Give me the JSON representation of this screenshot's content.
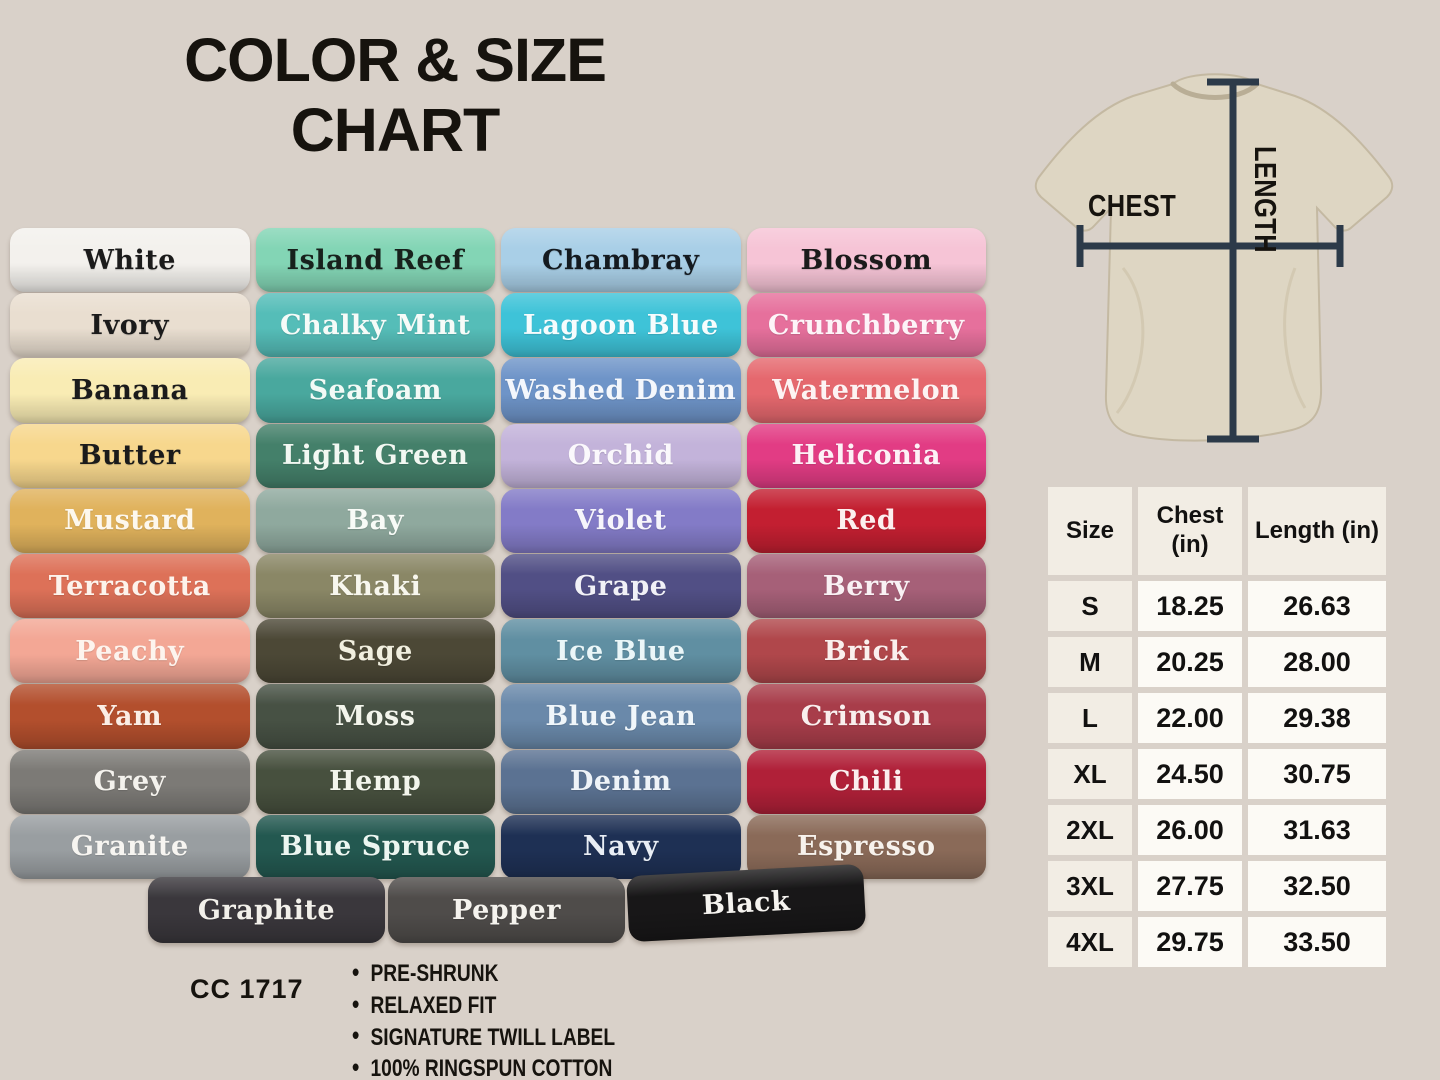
{
  "title": {
    "line1": "COLOR & SIZE",
    "line2": "CHART"
  },
  "background_color": "#d9d1c9",
  "color_grid": {
    "columns": [
      {
        "shirts": [
          {
            "name": "White",
            "color": "#f3f1ed",
            "text": "#1b1b1b"
          },
          {
            "name": "Ivory",
            "color": "#e9ded0",
            "text": "#1b1b1b"
          },
          {
            "name": "Banana",
            "color": "#f9ecb4",
            "text": "#1b1b1b"
          },
          {
            "name": "Butter",
            "color": "#f7d78d",
            "text": "#1b1b1b"
          },
          {
            "name": "Mustard",
            "color": "#e0b25c",
            "text": "#fdf8ee"
          },
          {
            "name": "Terracotta",
            "color": "#dd7158",
            "text": "#fdf3ec"
          },
          {
            "name": "Peachy",
            "color": "#f3a795",
            "text": "#fdf4ee"
          },
          {
            "name": "Yam",
            "color": "#b34f2d",
            "text": "#fbeee6"
          },
          {
            "name": "Grey",
            "color": "#7c7a76",
            "text": "#f4f2ed"
          },
          {
            "name": "Granite",
            "color": "#999ea1",
            "text": "#f7f5f1"
          }
        ]
      },
      {
        "shirts": [
          {
            "name": "Island Reef",
            "color": "#83d5b5",
            "text": "#17211c"
          },
          {
            "name": "Chalky Mint",
            "color": "#55bdb8",
            "text": "#f6fbf8"
          },
          {
            "name": "Seafoam",
            "color": "#49a89e",
            "text": "#f2faf6"
          },
          {
            "name": "Light Green",
            "color": "#44806a",
            "text": "#f2f8f2"
          },
          {
            "name": "Bay",
            "color": "#8fa99e",
            "text": "#f8fbf7"
          },
          {
            "name": "Khaki",
            "color": "#8a8766",
            "text": "#f8f7ee"
          },
          {
            "name": "Sage",
            "color": "#4c4836",
            "text": "#f1efdf"
          },
          {
            "name": "Moss",
            "color": "#475144",
            "text": "#f3f5ec"
          },
          {
            "name": "Hemp",
            "color": "#47503e",
            "text": "#f3f5ec"
          },
          {
            "name": "Blue Spruce",
            "color": "#235850",
            "text": "#ecf6f1"
          }
        ]
      },
      {
        "shirts": [
          {
            "name": "Chambray",
            "color": "#a9cfe7",
            "text": "#141a20"
          },
          {
            "name": "Lagoon Blue",
            "color": "#3ec3d8",
            "text": "#f6fcfd"
          },
          {
            "name": "Washed Denim",
            "color": "#6e94c8",
            "text": "#f4f7fc"
          },
          {
            "name": "Orchid",
            "color": "#c3b3da",
            "text": "#faf8fc"
          },
          {
            "name": "Violet",
            "color": "#837bc7",
            "text": "#f6f5fb"
          },
          {
            "name": "Grape",
            "color": "#514f85",
            "text": "#f1f1f7"
          },
          {
            "name": "Ice Blue",
            "color": "#608fa2",
            "text": "#eaf6f8"
          },
          {
            "name": "Blue Jean",
            "color": "#6a89aa",
            "text": "#f0f6fa"
          },
          {
            "name": "Denim",
            "color": "#5b7292",
            "text": "#eef3f8"
          },
          {
            "name": "Navy",
            "color": "#1e3054",
            "text": "#e9eef5"
          }
        ]
      },
      {
        "shirts": [
          {
            "name": "Blossom",
            "color": "#f6c4d6",
            "text": "#1b1b1b"
          },
          {
            "name": "Crunchberry",
            "color": "#e6709c",
            "text": "#fdf4f8"
          },
          {
            "name": "Watermelon",
            "color": "#e5686e",
            "text": "#fdf3f3"
          },
          {
            "name": "Heliconia",
            "color": "#e23c84",
            "text": "#fdf1f6"
          },
          {
            "name": "Red",
            "color": "#c31f31",
            "text": "#fcefef"
          },
          {
            "name": "Berry",
            "color": "#a66078",
            "text": "#f9f1f4"
          },
          {
            "name": "Brick",
            "color": "#b0474b",
            "text": "#faf0ee"
          },
          {
            "name": "Crimson",
            "color": "#a83d4a",
            "text": "#f9efee"
          },
          {
            "name": "Chili",
            "color": "#b02038",
            "text": "#fbeeee"
          },
          {
            "name": "Espresso",
            "color": "#8a6a58",
            "text": "#f7f2ec"
          }
        ]
      }
    ],
    "bottom_row": [
      {
        "name": "Graphite",
        "color": "#3a373c",
        "text": "#f2f0ea"
      },
      {
        "name": "Pepper",
        "color": "#4f4c4a",
        "text": "#f5f3ee"
      },
      {
        "name": "Black",
        "color": "#181718",
        "text": "#f6f4f0"
      }
    ]
  },
  "diagram": {
    "chest_label": "CHEST",
    "length_label": "LENGTH",
    "shirt_color": "#ded6c3",
    "shirt_shade": "#c9bfa9",
    "line_color": "#2c3a49"
  },
  "size_table": {
    "headers": [
      "Size",
      "Chest (in)",
      "Length (in)"
    ],
    "rows": [
      [
        "S",
        "18.25",
        "26.63"
      ],
      [
        "M",
        "20.25",
        "28.00"
      ],
      [
        "L",
        "22.00",
        "29.38"
      ],
      [
        "XL",
        "24.50",
        "30.75"
      ],
      [
        "2XL",
        "26.00",
        "31.63"
      ],
      [
        "3XL",
        "27.75",
        "32.50"
      ],
      [
        "4XL",
        "29.75",
        "33.50"
      ]
    ]
  },
  "footer": {
    "product_code": "CC 1717",
    "features": [
      "PRE-SHRUNK",
      "RELAXED FIT",
      "SIGNATURE TWILL LABEL",
      "100% RINGSPUN COTTON"
    ]
  },
  "chart_data": {
    "type": "table",
    "title": "COLOR & SIZE CHART",
    "columns": [
      "Size",
      "Chest (in)",
      "Length (in)"
    ],
    "rows": [
      [
        "S",
        18.25,
        26.63
      ],
      [
        "M",
        20.25,
        28.0
      ],
      [
        "L",
        22.0,
        29.38
      ],
      [
        "XL",
        24.5,
        30.75
      ],
      [
        "2XL",
        26.0,
        31.63
      ],
      [
        "3XL",
        27.75,
        32.5
      ],
      [
        "4XL",
        29.75,
        33.5
      ]
    ],
    "color_names": [
      "White",
      "Ivory",
      "Banana",
      "Butter",
      "Mustard",
      "Terracotta",
      "Peachy",
      "Yam",
      "Grey",
      "Granite",
      "Island Reef",
      "Chalky Mint",
      "Seafoam",
      "Light Green",
      "Bay",
      "Khaki",
      "Sage",
      "Moss",
      "Hemp",
      "Blue Spruce",
      "Chambray",
      "Lagoon Blue",
      "Washed Denim",
      "Orchid",
      "Violet",
      "Grape",
      "Ice Blue",
      "Blue Jean",
      "Denim",
      "Navy",
      "Blossom",
      "Crunchberry",
      "Watermelon",
      "Heliconia",
      "Red",
      "Berry",
      "Brick",
      "Crimson",
      "Chili",
      "Espresso",
      "Graphite",
      "Pepper",
      "Black"
    ]
  }
}
